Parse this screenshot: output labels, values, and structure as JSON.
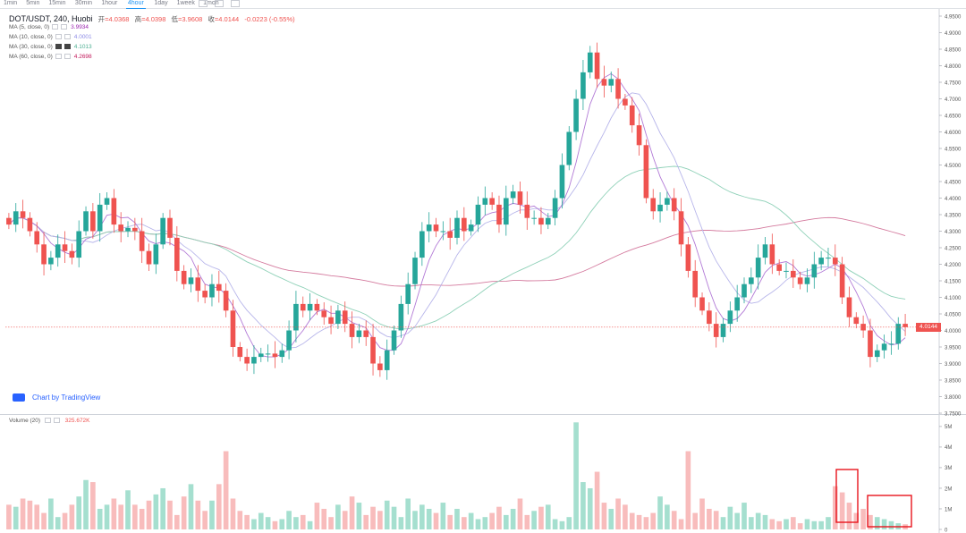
{
  "toolbar": {
    "timeframes": [
      "1min",
      "5min",
      "15min",
      "30min",
      "1hour",
      "4hour",
      "1day",
      "1week",
      "1mon"
    ],
    "active": "4hour"
  },
  "legend": {
    "symbol": "DOT/USDT, 240, Huobi",
    "open_label": "开",
    "open": "=4.0368",
    "high_label": "高",
    "high": "=4.0398",
    "low_label": "低",
    "low": "=3.9608",
    "close_label": "收",
    "close": "=4.0144",
    "change": "-0.0223 (-0.55%)"
  },
  "ma": [
    {
      "label": "MA (5, close, 0)",
      "value": "3.9934",
      "color": "#9c27b0"
    },
    {
      "label": "MA (10, close, 0)",
      "value": "4.0001",
      "color": "#8e8ce6"
    },
    {
      "label": "MA (30, close, 0)",
      "value": "4.1013",
      "color": "#4caf91"
    },
    {
      "label": "MA (60, close, 0)",
      "value": "4.2698",
      "color": "#c2185b"
    }
  ],
  "branding": "Chart by TradingView",
  "volume_legend": {
    "label": "Volume (20)",
    "value": "325.672K"
  },
  "current_price": "4.0144",
  "colors": {
    "up": "#26a69a",
    "down": "#ef5350",
    "vol_up": "#a5dfcf",
    "vol_down": "#f8bcbc",
    "highlight": "#e8141c"
  },
  "chart_data": [
    {
      "type": "candlestick",
      "title": "DOT/USDT, 240, Huobi",
      "ylim": [
        3.75,
        4.95
      ],
      "y_ticks": [
        "4.9500",
        "4.9000",
        "4.8500",
        "4.8000",
        "4.7500",
        "4.7000",
        "4.6500",
        "4.6000",
        "4.5500",
        "4.5000",
        "4.4500",
        "4.4000",
        "4.3500",
        "4.3000",
        "4.2500",
        "4.2000",
        "4.1500",
        "4.1000",
        "4.0500",
        "4.0000",
        "3.9500",
        "3.9000",
        "3.8500",
        "3.8000",
        "3.7500"
      ],
      "close": [
        4.32,
        4.36,
        4.34,
        4.3,
        4.26,
        4.2,
        4.22,
        4.26,
        4.24,
        4.22,
        4.3,
        4.36,
        4.3,
        4.38,
        4.4,
        4.32,
        4.3,
        4.31,
        4.3,
        4.24,
        4.2,
        4.26,
        4.34,
        4.28,
        4.18,
        4.14,
        4.16,
        4.12,
        4.1,
        4.14,
        4.12,
        4.06,
        3.95,
        3.92,
        3.9,
        3.92,
        3.93,
        3.93,
        3.92,
        3.94,
        4.0,
        4.08,
        4.06,
        4.08,
        4.06,
        4.04,
        4.02,
        4.06,
        4.02,
        3.98,
        4.0,
        3.98,
        3.9,
        3.88,
        3.94,
        4.0,
        4.08,
        4.14,
        4.22,
        4.3,
        4.32,
        4.3,
        4.3,
        4.28,
        4.34,
        4.3,
        4.32,
        4.38,
        4.4,
        4.38,
        4.32,
        4.4,
        4.42,
        4.38,
        4.34,
        4.34,
        4.32,
        4.34,
        4.4,
        4.5,
        4.6,
        4.7,
        4.78,
        4.84,
        4.76,
        4.74,
        4.76,
        4.7,
        4.68,
        4.62,
        4.56,
        4.4,
        4.36,
        4.38,
        4.4,
        4.36,
        4.26,
        4.18,
        4.1,
        4.06,
        4.02,
        3.98,
        4.02,
        4.06,
        4.1,
        4.14,
        4.16,
        4.22,
        4.26,
        4.2,
        4.18,
        4.18,
        4.16,
        4.14,
        4.16,
        4.2,
        4.22,
        4.22,
        4.2,
        4.1,
        4.04,
        4.02,
        4.0,
        3.92,
        3.94,
        3.96,
        3.96,
        4.02,
        4.01
      ],
      "ma": {
        "5": 3.9934,
        "10": 4.0001,
        "30": 4.1013,
        "60": 4.2698
      }
    },
    {
      "type": "bar",
      "title": "Volume (20)",
      "last_value": "325.672K",
      "ylim": [
        0,
        5.3
      ],
      "y_ticks": [
        "5M",
        "4M",
        "3M",
        "2M",
        "1M",
        "0"
      ],
      "values": [
        1.2,
        1.1,
        1.5,
        1.4,
        1.2,
        0.8,
        1.5,
        0.6,
        0.8,
        1.2,
        1.6,
        2.4,
        2.3,
        1.0,
        1.2,
        1.5,
        1.2,
        1.9,
        1.2,
        1.0,
        1.4,
        1.7,
        2.0,
        1.4,
        0.7,
        1.6,
        2.2,
        1.4,
        0.9,
        1.4,
        2.2,
        3.8,
        1.5,
        0.9,
        0.7,
        0.5,
        0.8,
        0.6,
        0.4,
        0.5,
        0.9,
        0.6,
        0.7,
        0.4,
        1.3,
        1.0,
        0.6,
        1.2,
        0.9,
        1.6,
        1.3,
        0.7,
        1.1,
        0.9,
        1.4,
        1.1,
        0.6,
        1.5,
        0.9,
        1.2,
        1.0,
        0.8,
        1.3,
        0.7,
        1.0,
        0.6,
        0.8,
        0.5,
        0.6,
        0.8,
        1.1,
        0.7,
        1.0,
        1.5,
        0.7,
        0.9,
        1.1,
        1.2,
        0.5,
        0.4,
        0.6,
        5.2,
        2.3,
        2.0,
        2.8,
        1.3,
        1.0,
        1.5,
        1.2,
        0.8,
        0.7,
        0.6,
        0.8,
        1.6,
        1.2,
        0.9,
        0.5,
        3.8,
        0.8,
        1.5,
        1.0,
        0.9,
        0.6,
        1.1,
        0.8,
        1.3,
        0.6,
        0.8,
        0.7,
        0.5,
        0.4,
        0.5,
        0.6,
        0.3,
        0.5,
        0.4,
        0.4,
        0.6,
        2.1,
        1.8,
        1.3,
        0.8,
        1.0,
        0.7,
        0.6,
        0.5,
        0.4,
        0.3,
        0.25
      ]
    }
  ]
}
